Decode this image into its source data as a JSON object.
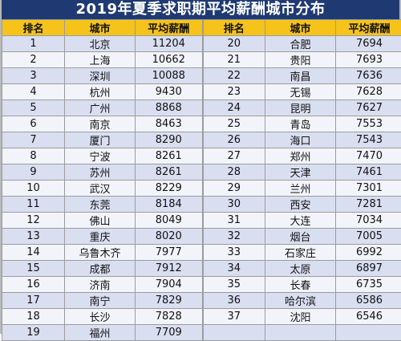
{
  "title": "2019年夏季求职期平均薪酬城市分布",
  "headers": {
    "left": [
      "排名",
      "城市",
      "平均薪酬"
    ],
    "right": [
      "排名",
      "城市",
      "平均薪酬"
    ]
  },
  "rows": [
    {
      "left": [
        "1",
        "北京",
        "11204"
      ],
      "right": [
        "20",
        "合肥",
        "7694"
      ]
    },
    {
      "left": [
        "2",
        "上海",
        "10662"
      ],
      "right": [
        "21",
        "贵阳",
        "7693"
      ]
    },
    {
      "left": [
        "3",
        "深圳",
        "10088"
      ],
      "right": [
        "22",
        "南昌",
        "7636"
      ]
    },
    {
      "left": [
        "4",
        "杭州",
        "9430"
      ],
      "right": [
        "23",
        "无锡",
        "7628"
      ]
    },
    {
      "left": [
        "5",
        "广州",
        "8868"
      ],
      "right": [
        "24",
        "昆明",
        "7627"
      ]
    },
    {
      "left": [
        "6",
        "南京",
        "8463"
      ],
      "right": [
        "25",
        "青岛",
        "7553"
      ]
    },
    {
      "left": [
        "7",
        "厦门",
        "8290"
      ],
      "right": [
        "26",
        "海口",
        "7543"
      ]
    },
    {
      "left": [
        "8",
        "宁波",
        "8261"
      ],
      "right": [
        "27",
        "郑州",
        "7470"
      ]
    },
    {
      "left": [
        "9",
        "苏州",
        "8261"
      ],
      "right": [
        "28",
        "天津",
        "7461"
      ]
    },
    {
      "left": [
        "10",
        "武汉",
        "8229"
      ],
      "right": [
        "29",
        "兰州",
        "7301"
      ]
    },
    {
      "left": [
        "11",
        "东莞",
        "8184"
      ],
      "right": [
        "30",
        "西安",
        "7281"
      ]
    },
    {
      "left": [
        "12",
        "佛山",
        "8049"
      ],
      "right": [
        "31",
        "大连",
        "7034"
      ]
    },
    {
      "left": [
        "13",
        "重庆",
        "8020"
      ],
      "right": [
        "32",
        "烟台",
        "7005"
      ]
    },
    {
      "left": [
        "14",
        "乌鲁木齐",
        "7977"
      ],
      "right": [
        "33",
        "石家庄",
        "6992"
      ]
    },
    {
      "left": [
        "15",
        "成都",
        "7912"
      ],
      "right": [
        "34",
        "太原",
        "6897"
      ]
    },
    {
      "left": [
        "16",
        "济南",
        "7904"
      ],
      "right": [
        "35",
        "长春",
        "6735"
      ]
    },
    {
      "left": [
        "17",
        "南宁",
        "7829"
      ],
      "right": [
        "36",
        "哈尔滨",
        "6586"
      ]
    },
    {
      "left": [
        "18",
        "长沙",
        "7828"
      ],
      "right": [
        "37",
        "沈阳",
        "6546"
      ]
    },
    {
      "left": [
        "19",
        "福州",
        "7709"
      ],
      "right": [
        "",
        "",
        ""
      ]
    }
  ]
}
